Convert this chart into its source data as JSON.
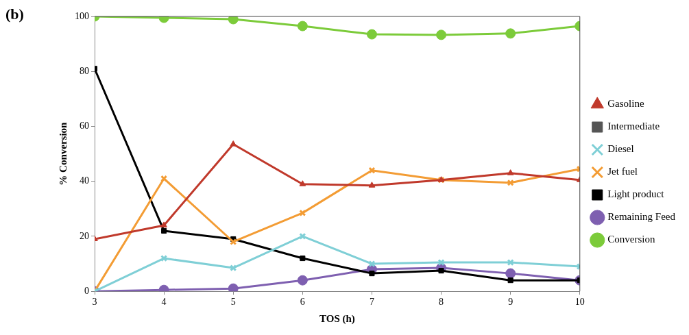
{
  "chart_data": {
    "type": "line",
    "xlabel": "TOS (h)",
    "ylabel": "% Conversion",
    "annotations": [
      "(b)"
    ],
    "x": [
      3,
      4,
      5,
      6,
      7,
      8,
      9,
      10
    ],
    "xlim": [
      3,
      10
    ],
    "xticks": [
      3,
      4,
      5,
      6,
      7,
      8,
      9,
      10
    ],
    "ylim": [
      0,
      100
    ],
    "yticks": [
      0,
      20,
      40,
      60,
      80,
      100
    ],
    "grid": false,
    "legend": "right",
    "series": [
      {
        "name": "Gasoline",
        "color": "#c0392b",
        "marker": "triangle",
        "values": [
          19,
          24,
          53.5,
          39,
          38.5,
          40.5,
          43,
          40.5
        ]
      },
      {
        "name": "Intermediate",
        "color": "#555555",
        "marker": "square",
        "values": [
          null,
          null,
          null,
          null,
          null,
          null,
          null,
          null
        ]
      },
      {
        "name": "Diesel",
        "color": "#7fcfd6",
        "marker": "cross",
        "values": [
          0,
          12,
          8.5,
          20,
          10,
          10.5,
          10.5,
          9
        ]
      },
      {
        "name": "Jet fuel",
        "color": "#f39c34",
        "marker": "cross",
        "values": [
          0,
          41,
          18,
          28.5,
          44,
          40.5,
          39.5,
          44.5
        ]
      },
      {
        "name": "Light product",
        "color": "#000000",
        "marker": "square",
        "values": [
          81,
          22,
          19,
          12,
          6.5,
          7.5,
          4,
          4
        ]
      },
      {
        "name": "Remaining Feed",
        "color": "#7e5fb0",
        "marker": "circle",
        "values": [
          0,
          0.5,
          1,
          4,
          8,
          8.5,
          6.5,
          4
        ]
      },
      {
        "name": "Conversion",
        "color": "#7ccb3a",
        "marker": "circle",
        "values": [
          100,
          99.5,
          99,
          96.5,
          93.5,
          93.3,
          93.8,
          96.5
        ]
      }
    ]
  }
}
